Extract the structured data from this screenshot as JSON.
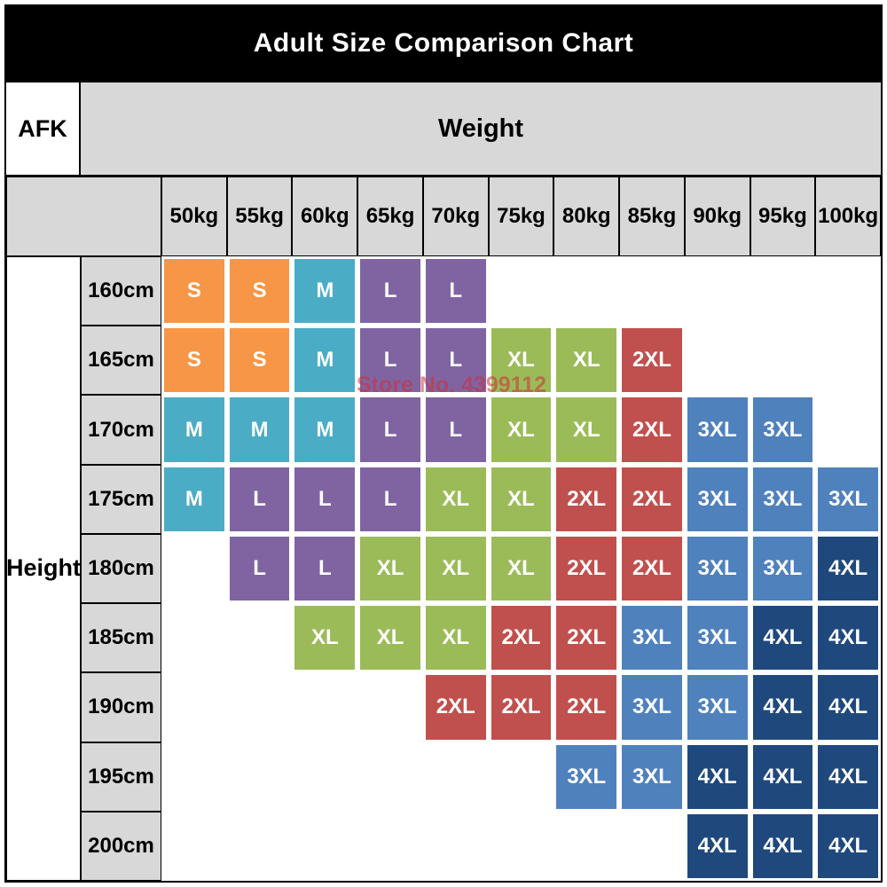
{
  "title": "Adult Size Comparison Chart",
  "labels": {
    "corner": "AFK",
    "weight": "Weight",
    "height": "Height"
  },
  "watermark": "Store No. 4399112",
  "colors": {
    "title_bg": "#000000",
    "title_text": "#ffffff",
    "header_bg": "#d8d8d8",
    "size_colors": {
      "S": "#f79646",
      "M": "#4bacc6",
      "L": "#8064a2",
      "XL": "#9bbb59",
      "2XL": "#c0504d",
      "3XL": "#4f81bd",
      "4XL": "#1f497d"
    }
  },
  "chart_data": {
    "type": "table",
    "title": "Adult Size Comparison Chart",
    "x_axis_label": "Weight",
    "y_axis_label": "Height",
    "columns": [
      "50kg",
      "55kg",
      "60kg",
      "65kg",
      "70kg",
      "75kg",
      "80kg",
      "85kg",
      "90kg",
      "95kg",
      "100kg"
    ],
    "rows": [
      "160cm",
      "165cm",
      "170cm",
      "175cm",
      "180cm",
      "185cm",
      "190cm",
      "195cm",
      "200cm"
    ],
    "cells": [
      [
        "S",
        "S",
        "M",
        "L",
        "L",
        "",
        "",
        "",
        "",
        "",
        ""
      ],
      [
        "S",
        "S",
        "M",
        "L",
        "L",
        "XL",
        "XL",
        "2XL",
        "",
        "",
        ""
      ],
      [
        "M",
        "M",
        "M",
        "L",
        "L",
        "XL",
        "XL",
        "2XL",
        "3XL",
        "3XL",
        ""
      ],
      [
        "M",
        "L",
        "L",
        "L",
        "XL",
        "XL",
        "2XL",
        "2XL",
        "3XL",
        "3XL",
        "3XL"
      ],
      [
        "",
        "L",
        "L",
        "XL",
        "XL",
        "XL",
        "2XL",
        "2XL",
        "3XL",
        "3XL",
        "4XL"
      ],
      [
        "",
        "",
        "XL",
        "XL",
        "XL",
        "2XL",
        "2XL",
        "3XL",
        "3XL",
        "4XL",
        "4XL"
      ],
      [
        "",
        "",
        "",
        "",
        "2XL",
        "2XL",
        "2XL",
        "3XL",
        "3XL",
        "4XL",
        "4XL"
      ],
      [
        "",
        "",
        "",
        "",
        "",
        "",
        "3XL",
        "3XL",
        "4XL",
        "4XL",
        "4XL"
      ],
      [
        "",
        "",
        "",
        "",
        "",
        "",
        "",
        "",
        "4XL",
        "4XL",
        "4XL"
      ]
    ],
    "legend": {
      "sizes": [
        "S",
        "M",
        "L",
        "XL",
        "2XL",
        "3XL",
        "4XL"
      ]
    }
  }
}
